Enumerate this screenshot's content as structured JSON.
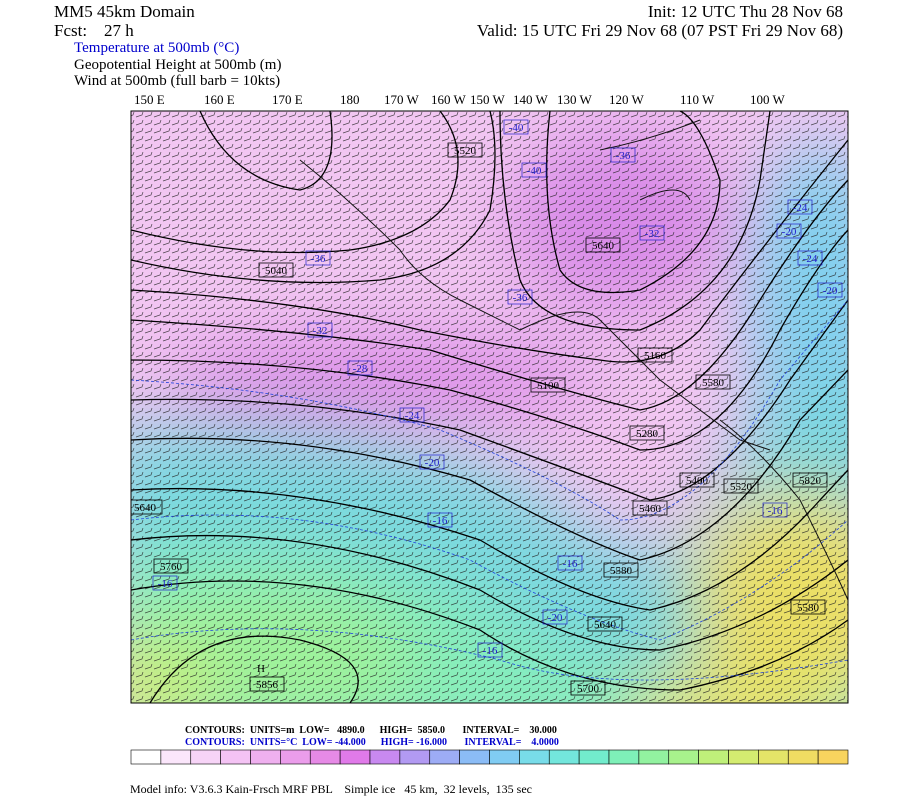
{
  "header": {
    "title": "MM5 45km Domain",
    "forecast": "Fcst:    27 h",
    "init": "Init: 12 UTC Thu 28 Nov 68",
    "valid": "Valid: 15 UTC Fri 29 Nov 68 (07 PST Fri 29 Nov 68)",
    "fields": [
      "Temperature at 500mb (°C)",
      "Geopotential Height at 500mb (m)",
      "Wind at 500mb (full barb = 10kts)"
    ]
  },
  "longitudes": [
    "150 E",
    "160 E",
    "170 E",
    "180",
    "170 W",
    "160 W",
    "150 W",
    "140 W",
    "130 W",
    "120 W",
    "110 W",
    "100 W"
  ],
  "map_labels": {
    "heights": [
      "5520",
      "5040",
      "5640",
      "5160",
      "5100",
      "5580",
      "5280",
      "5400",
      "5460",
      "5580",
      "5640",
      "5700",
      "5640",
      "5760",
      "H",
      "5856",
      "5820",
      "5520",
      "5580"
    ],
    "temps": [
      "-40",
      "-40",
      "-36",
      "-32",
      "-36",
      "-36",
      "-32",
      "-28",
      "-24",
      "-20",
      "-24",
      "-20",
      "-24",
      "-20",
      "-16",
      "-16",
      "-16",
      "-16",
      "-20",
      "-16"
    ]
  },
  "contour_info": [
    "CONTOURS:  UNITS=m  LOW=   4890.0      HIGH=  5850.0       INTERVAL=    30.000",
    "CONTOURS:  UNITS=°C  LOW= -44.000      HIGH= -16.000       INTERVAL=    4.0000"
  ],
  "colorbar": {
    "colors": [
      "#ffffff",
      "#fbe6fb",
      "#f7d4f7",
      "#f4c3f4",
      "#efb0ef",
      "#eb9deb",
      "#e68ae6",
      "#e07ae9",
      "#c889f0",
      "#b29af2",
      "#9dacf5",
      "#8bbcf6",
      "#80ccf3",
      "#78dce9",
      "#73e6dc",
      "#72eccc",
      "#7ef0b8",
      "#92f2a0",
      "#a8f28c",
      "#bff07a",
      "#d4ec70",
      "#e4e468",
      "#f0dc62",
      "#f8d45e"
    ]
  },
  "model_info": "Model info: V3.6.3 Kain-Frsch MRF PBL    Simple ice   45 km,  32 levels,  135 sec"
}
